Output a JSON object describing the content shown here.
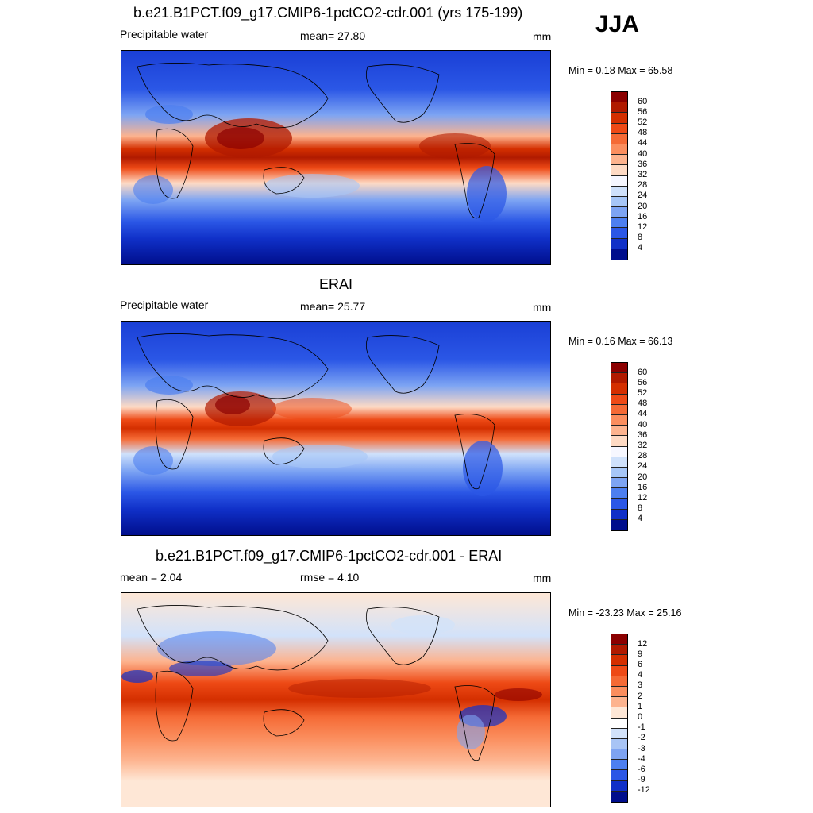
{
  "season": "JJA",
  "panels": [
    {
      "title": "b.e21.B1PCT.f09_g17.CMIP6-1pctCO2-cdr.001 (yrs 175-199)",
      "left_label": "Precipitable water",
      "center_label": "mean=  27.80",
      "units": "mm",
      "minmax": "Min =   0.18 Max =  65.58",
      "stats": {
        "mean": 27.8,
        "min": 0.18,
        "max": 65.58
      },
      "colorbar": {
        "levels": [
          "60",
          "56",
          "52",
          "48",
          "44",
          "40",
          "36",
          "32",
          "28",
          "24",
          "20",
          "16",
          "12",
          "8",
          "4"
        ],
        "colors": [
          "#8b0000",
          "#b01a00",
          "#d42f00",
          "#ee4a16",
          "#f56a35",
          "#fb8e5e",
          "#fdb38e",
          "#fedac4",
          "#f6f7ff",
          "#cfe1fb",
          "#a6c6f7",
          "#7da4f3",
          "#4d7ff0",
          "#2b57e6",
          "#1030c8",
          "#000e8c"
        ]
      }
    },
    {
      "title": "ERAI",
      "left_label": "Precipitable water",
      "center_label": "mean=  25.77",
      "units": "mm",
      "minmax": "Min =   0.16 Max =  66.13",
      "stats": {
        "mean": 25.77,
        "min": 0.16,
        "max": 66.13
      },
      "colorbar": {
        "levels": [
          "60",
          "56",
          "52",
          "48",
          "44",
          "40",
          "36",
          "32",
          "28",
          "24",
          "20",
          "16",
          "12",
          "8",
          "4"
        ],
        "colors": [
          "#8b0000",
          "#b01a00",
          "#d42f00",
          "#ee4a16",
          "#f56a35",
          "#fb8e5e",
          "#fdb38e",
          "#fedac4",
          "#f6f7ff",
          "#cfe1fb",
          "#a6c6f7",
          "#7da4f3",
          "#4d7ff0",
          "#2b57e6",
          "#1030c8",
          "#000e8c"
        ]
      }
    },
    {
      "title": "b.e21.B1PCT.f09_g17.CMIP6-1pctCO2-cdr.001 - ERAI",
      "left_label": "mean =   2.04",
      "center_label": "rmse =   4.10",
      "units": "mm",
      "minmax": "Min = -23.23 Max =  25.16",
      "stats": {
        "mean": 2.04,
        "rmse": 4.1,
        "min": -23.23,
        "max": 25.16
      },
      "colorbar": {
        "levels": [
          "12",
          "9",
          "6",
          "4",
          "3",
          "2",
          "1",
          "0",
          "-1",
          "-2",
          "-3",
          "-4",
          "-6",
          "-9",
          "-12"
        ],
        "colors": [
          "#8b0000",
          "#b01a00",
          "#d42f00",
          "#ee4a16",
          "#f56a35",
          "#fb8e5e",
          "#fdb38e",
          "#fee7d6",
          "#ffffff",
          "#d2e2fa",
          "#a8c4f5",
          "#7ea3f1",
          "#4d7ff0",
          "#2b57e6",
          "#1030c8",
          "#000e8c"
        ]
      }
    }
  ]
}
